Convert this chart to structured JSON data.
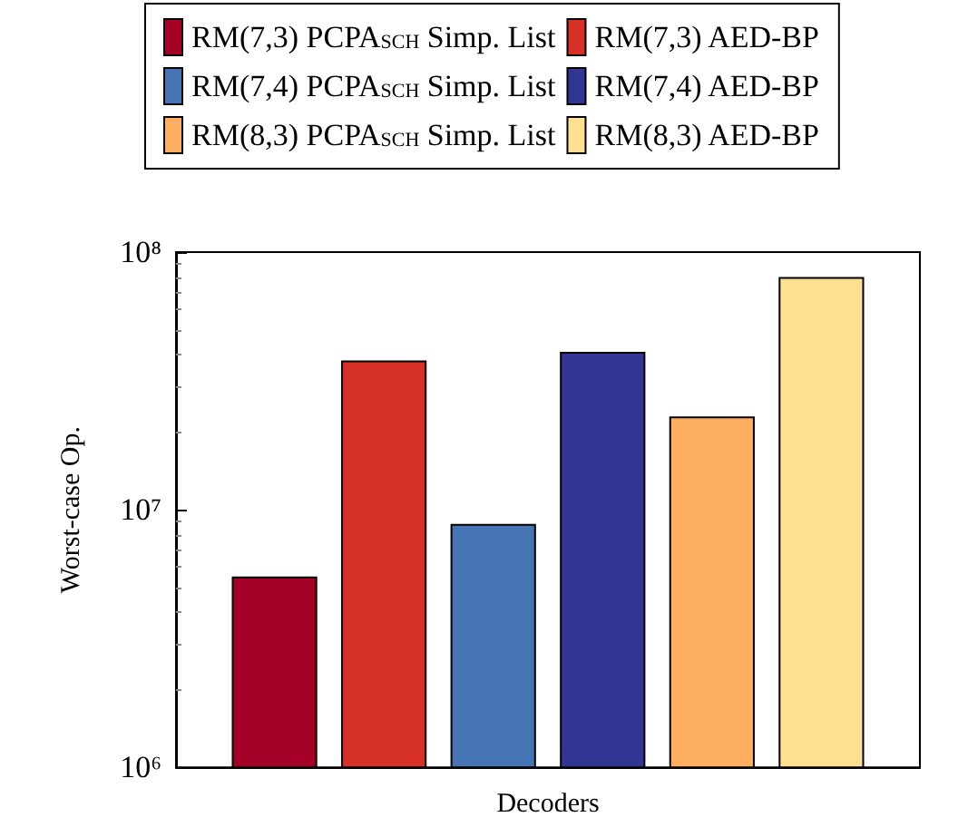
{
  "chart_data": {
    "type": "bar",
    "xlabel": "Decoders",
    "ylabel": "Worst-case Op.",
    "categories": [
      null
    ],
    "series": [
      {
        "name": "RM(7,3) PCPA$_{SCH}$ Simp. List",
        "color": "#a50026",
        "values": [
          5500000
        ]
      },
      {
        "name": "RM(7,3) AED-BP",
        "color": "#d73027",
        "values": [
          38000000
        ]
      },
      {
        "name": "RM(7,4) PCPA$_{SCH}$ Simp. List",
        "color": "#4575b4",
        "values": [
          8800000
        ]
      },
      {
        "name": "RM(7,4) AED-BP",
        "color": "#313695",
        "values": [
          41000000
        ]
      },
      {
        "name": "RM(8,3) PCPA$_{SCH}$ Simp. List",
        "color": "#fdae61",
        "values": [
          23000000
        ]
      },
      {
        "name": "RM(8,3) AED-BP",
        "color": "#fee090",
        "values": [
          80000000
        ]
      }
    ],
    "log": "y",
    "ylim": [
      1000000,
      100000000
    ],
    "yticks": [
      {
        "value": 1000000,
        "label": "10⁶"
      },
      {
        "value": 10000000,
        "label": "10⁷"
      },
      {
        "value": 100000000,
        "label": "10⁸"
      }
    ],
    "grid": false,
    "legend": "top"
  }
}
